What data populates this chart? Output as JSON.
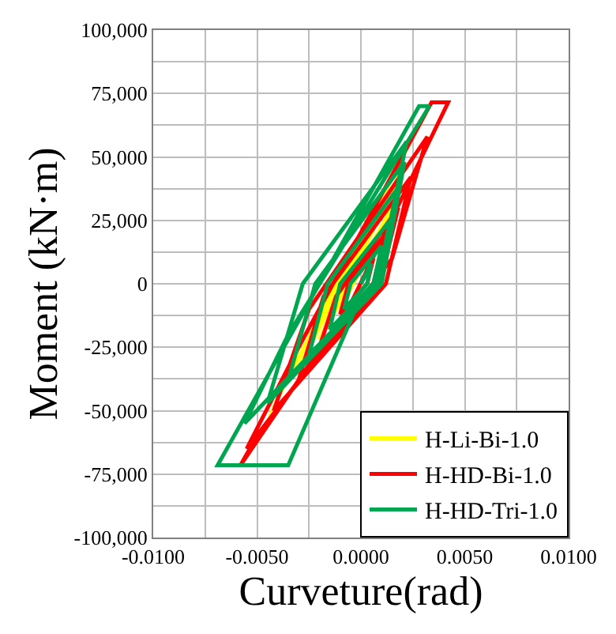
{
  "chart_data": {
    "type": "line",
    "xlabel": "Curveture(rad)",
    "ylabel": "Moment (kN·m)",
    "xlim": [
      -0.01,
      0.01
    ],
    "xticks": [
      {
        "value": -0.01,
        "label": "-0.0100"
      },
      {
        "value": -0.0075,
        "label": null
      },
      {
        "value": -0.005,
        "label": "-0.0050"
      },
      {
        "value": -0.0025,
        "label": null
      },
      {
        "value": 0,
        "label": "0.0000"
      },
      {
        "value": 0.0025,
        "label": null
      },
      {
        "value": 0.005,
        "label": "0.0050"
      },
      {
        "value": 0.0075,
        "label": null
      },
      {
        "value": 0.01,
        "label": "0.0100"
      }
    ],
    "ylim": [
      -100000,
      100000
    ],
    "yticks": [
      {
        "value": -100000,
        "label": "-100,000"
      },
      {
        "value": -87500,
        "label": null
      },
      {
        "value": -75000,
        "label": "-75,000"
      },
      {
        "value": -62500,
        "label": null
      },
      {
        "value": -50000,
        "label": "-50,000"
      },
      {
        "value": -37500,
        "label": null
      },
      {
        "value": -25000,
        "label": "-25,000"
      },
      {
        "value": -12500,
        "label": null
      },
      {
        "value": 0,
        "label": "0"
      },
      {
        "value": 12500,
        "label": null
      },
      {
        "value": 25000,
        "label": "25,000"
      },
      {
        "value": 37500,
        "label": null
      },
      {
        "value": 50000,
        "label": "50,000"
      },
      {
        "value": 62500,
        "label": null
      },
      {
        "value": 75000,
        "label": "75,000"
      },
      {
        "value": 87500,
        "label": null
      },
      {
        "value": 100000,
        "label": "100,000"
      }
    ],
    "grid": true,
    "legend": "bottom right",
    "marker": "none",
    "line_style": "solid",
    "series": [
      {
        "name": "H-Li-Bi-1.0",
        "color": "#ffff00",
        "x": [
          -0.001,
          0.0015,
          -0.002,
          0.002,
          -0.003,
          0.0024,
          -0.004,
          -0.0045
        ],
        "values": [
          -10000,
          30000,
          -22000,
          45000,
          -33000,
          56600,
          -45000,
          -55000
        ]
      },
      {
        "name": "H-HD-Bi-1.0",
        "color": "#ff0000",
        "x": [
          0,
          0.0006,
          0.0003,
          -0.001,
          -0.0006,
          0.0012,
          0.0006,
          -0.002,
          -0.0012,
          0.0018,
          0.0009,
          -0.003,
          -0.0018,
          0.0024,
          0.0012,
          -0.0042,
          -0.0025,
          0.0032,
          0.0015,
          -0.0055,
          -0.003,
          0.0034,
          0.0042,
          -0.0005,
          -0.0058,
          -0.005
        ],
        "values": [
          0,
          10000,
          0,
          -12000,
          0,
          20000,
          0,
          -25000,
          -5000,
          30000,
          0,
          -38000,
          -5000,
          42000,
          0,
          -50000,
          -10000,
          58000,
          10000,
          -65000,
          -25000,
          71500,
          71500,
          -8000,
          -71500,
          -60000
        ]
      },
      {
        "name": "H-HD-Tri-1.0",
        "color": "#00a550",
        "x": [
          0,
          0.0005,
          0.0003,
          -0.0008,
          -0.0005,
          0.001,
          0.0006,
          -0.0015,
          -0.001,
          0.0014,
          0.0008,
          -0.0025,
          -0.0016,
          0.0018,
          0.0009,
          -0.0035,
          -0.0022,
          0.0021,
          0.001,
          -0.0045,
          -0.0028,
          0.0022,
          0.0008,
          -0.0056,
          -0.0035,
          0.0033,
          0.0028,
          -0.0069,
          -0.0035,
          0.0,
          -0.0005
        ],
        "values": [
          0,
          8000,
          0,
          -10000,
          0,
          15000,
          0,
          -18000,
          0,
          25000,
          0,
          -28000,
          0,
          38000,
          0,
          -38000,
          0,
          48000,
          0,
          -47000,
          0,
          56000,
          0,
          -55000,
          -20000,
          70000,
          70000,
          -71500,
          -71500,
          -5000,
          -12000
        ]
      }
    ]
  }
}
